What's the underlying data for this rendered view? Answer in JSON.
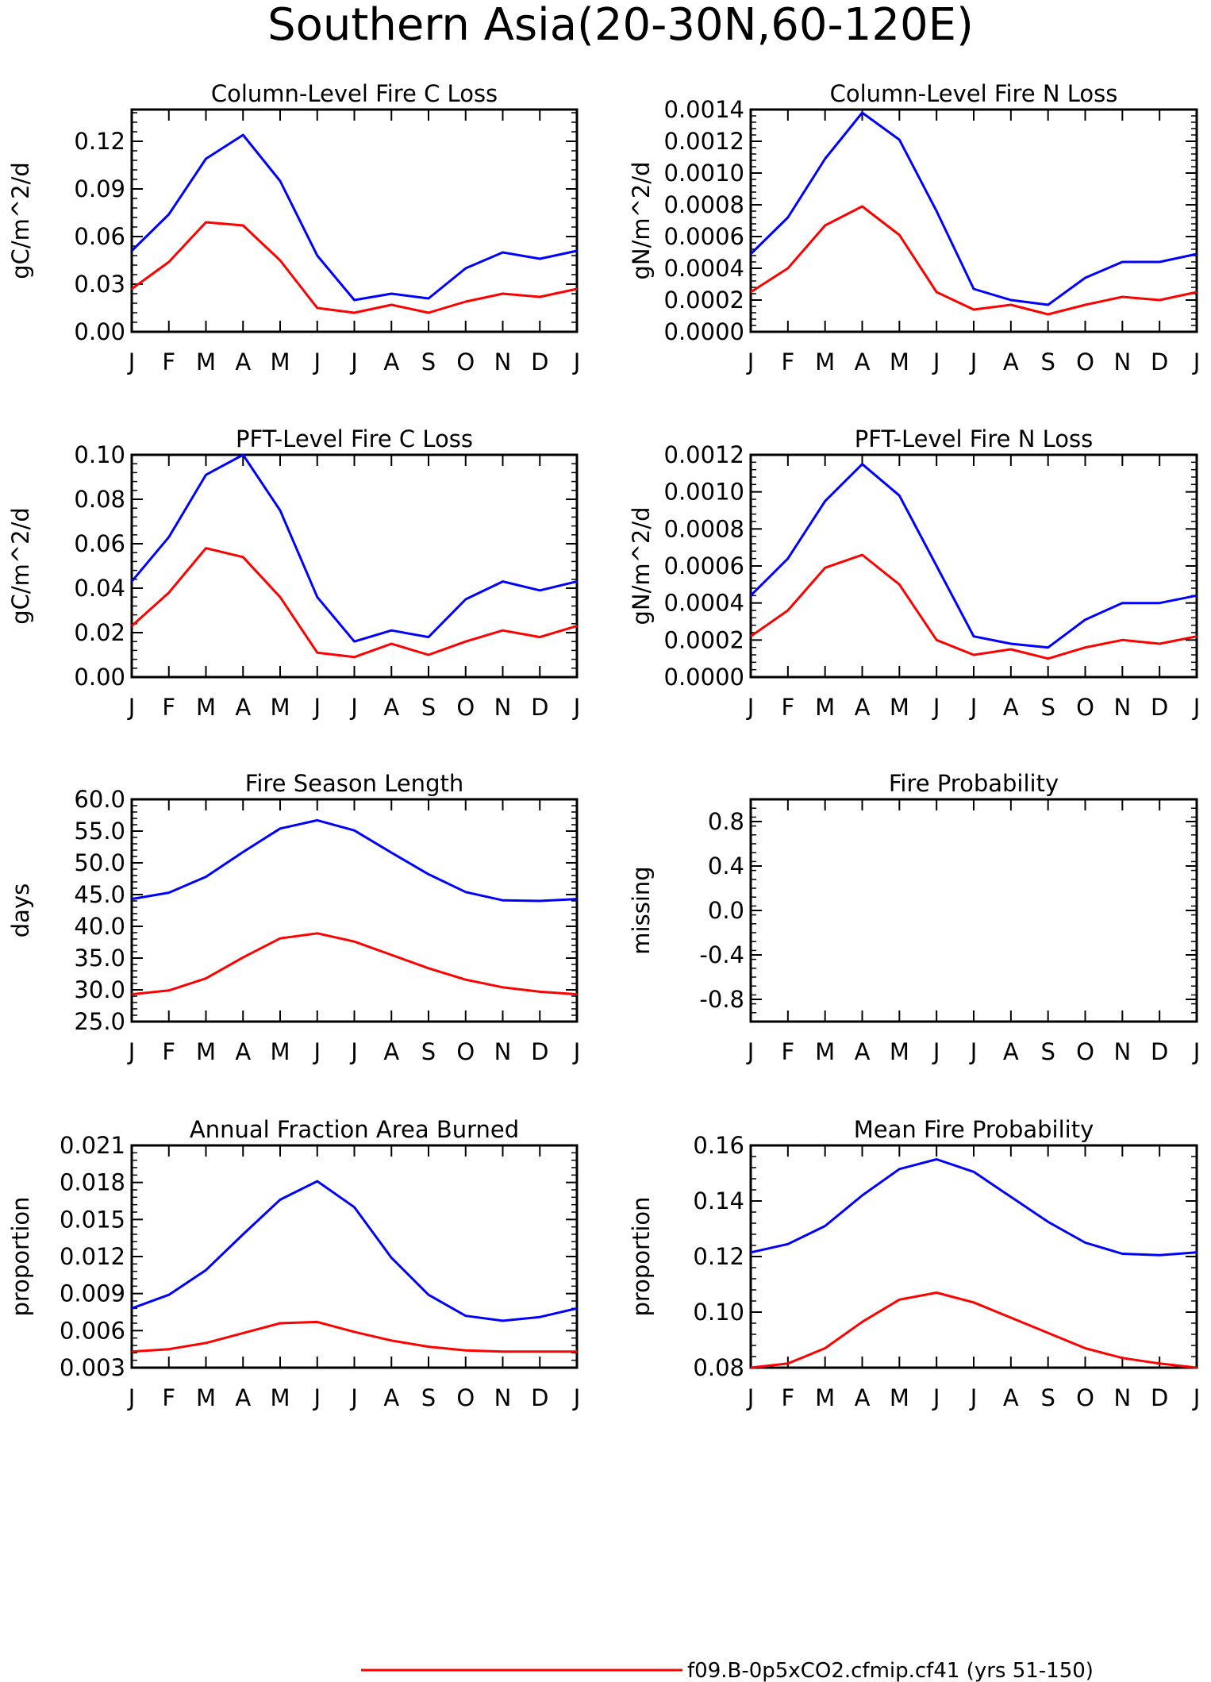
{
  "title": "Southern Asia(20-30N,60-120E)",
  "legend": {
    "entries": [
      {
        "label": "f09.B-0p5xCO2.cfmip.cf41 (yrs 51-150)",
        "color": "#ff0000"
      }
    ]
  },
  "colors": {
    "series_red": "#ff0000",
    "series_blue": "#0000ff",
    "axes": "#000000"
  },
  "chart_data": [
    {
      "type": "line",
      "title": "Column-Level Fire C Loss",
      "ylabel": "gC/m^2/d",
      "xlabel": "",
      "categories": [
        "J",
        "F",
        "M",
        "A",
        "M",
        "J",
        "J",
        "A",
        "S",
        "O",
        "N",
        "D",
        "J"
      ],
      "ylim": [
        0.0,
        0.14
      ],
      "yticks": [
        "0.00",
        "0.03",
        "0.06",
        "0.09",
        "0.12"
      ],
      "ytick_values": [
        0.0,
        0.03,
        0.06,
        0.09,
        0.12
      ],
      "series": [
        {
          "color": "#0000ff",
          "values": [
            0.051,
            0.074,
            0.109,
            0.124,
            0.095,
            0.048,
            0.02,
            0.024,
            0.021,
            0.04,
            0.05,
            0.046,
            0.051
          ]
        },
        {
          "color": "#ff0000",
          "values": [
            0.027,
            0.044,
            0.069,
            0.067,
            0.045,
            0.015,
            0.012,
            0.017,
            0.012,
            0.019,
            0.024,
            0.022,
            0.027
          ]
        }
      ]
    },
    {
      "type": "line",
      "title": "Column-Level Fire N Loss",
      "ylabel": "gN/m^2/d",
      "xlabel": "",
      "categories": [
        "J",
        "F",
        "M",
        "A",
        "M",
        "J",
        "J",
        "A",
        "S",
        "O",
        "N",
        "D",
        "J"
      ],
      "ylim": [
        0.0,
        0.0014
      ],
      "yticks": [
        "0.0000",
        "0.0002",
        "0.0004",
        "0.0006",
        "0.0008",
        "0.0010",
        "0.0012",
        "0.0014"
      ],
      "ytick_values": [
        0.0,
        0.0002,
        0.0004,
        0.0006,
        0.0008,
        0.001,
        0.0012,
        0.0014
      ],
      "series": [
        {
          "color": "#0000ff",
          "values": [
            0.00049,
            0.00072,
            0.00109,
            0.00138,
            0.00121,
            0.00076,
            0.00027,
            0.0002,
            0.00017,
            0.00034,
            0.00044,
            0.00044,
            0.00049
          ]
        },
        {
          "color": "#ff0000",
          "values": [
            0.00025,
            0.0004,
            0.00067,
            0.00079,
            0.00061,
            0.00025,
            0.00014,
            0.00017,
            0.00011,
            0.00017,
            0.00022,
            0.0002,
            0.00025
          ]
        }
      ]
    },
    {
      "type": "line",
      "title": "PFT-Level Fire C Loss",
      "ylabel": "gC/m^2/d",
      "xlabel": "",
      "categories": [
        "J",
        "F",
        "M",
        "A",
        "M",
        "J",
        "J",
        "A",
        "S",
        "O",
        "N",
        "D",
        "J"
      ],
      "ylim": [
        0.0,
        0.1
      ],
      "yticks": [
        "0.00",
        "0.02",
        "0.04",
        "0.06",
        "0.08",
        "0.10"
      ],
      "ytick_values": [
        0.0,
        0.02,
        0.04,
        0.06,
        0.08,
        0.1
      ],
      "series": [
        {
          "color": "#0000ff",
          "values": [
            0.043,
            0.063,
            0.091,
            0.1,
            0.075,
            0.036,
            0.016,
            0.021,
            0.018,
            0.035,
            0.043,
            0.039,
            0.043
          ]
        },
        {
          "color": "#ff0000",
          "values": [
            0.023,
            0.038,
            0.058,
            0.054,
            0.036,
            0.011,
            0.009,
            0.015,
            0.01,
            0.016,
            0.021,
            0.018,
            0.023
          ]
        }
      ]
    },
    {
      "type": "line",
      "title": "PFT-Level Fire N Loss",
      "ylabel": "gN/m^2/d",
      "xlabel": "",
      "categories": [
        "J",
        "F",
        "M",
        "A",
        "M",
        "J",
        "J",
        "A",
        "S",
        "O",
        "N",
        "D",
        "J"
      ],
      "ylim": [
        0.0,
        0.0012
      ],
      "yticks": [
        "0.0000",
        "0.0002",
        "0.0004",
        "0.0006",
        "0.0008",
        "0.0010",
        "0.0012"
      ],
      "ytick_values": [
        0.0,
        0.0002,
        0.0004,
        0.0006,
        0.0008,
        0.001,
        0.0012
      ],
      "series": [
        {
          "color": "#0000ff",
          "values": [
            0.00044,
            0.00064,
            0.00095,
            0.00115,
            0.00098,
            0.0006,
            0.00022,
            0.00018,
            0.00016,
            0.00031,
            0.0004,
            0.0004,
            0.00044
          ]
        },
        {
          "color": "#ff0000",
          "values": [
            0.00022,
            0.00036,
            0.00059,
            0.00066,
            0.0005,
            0.0002,
            0.00012,
            0.00015,
            0.0001,
            0.00016,
            0.0002,
            0.00018,
            0.00022
          ]
        }
      ]
    },
    {
      "type": "line",
      "title": "Fire Season Length",
      "ylabel": "days",
      "xlabel": "",
      "categories": [
        "J",
        "F",
        "M",
        "A",
        "M",
        "J",
        "J",
        "A",
        "S",
        "O",
        "N",
        "D",
        "J"
      ],
      "ylim": [
        25.0,
        60.0
      ],
      "yticks": [
        "25.0",
        "30.0",
        "35.0",
        "40.0",
        "45.0",
        "50.0",
        "55.0",
        "60.0"
      ],
      "ytick_values": [
        25,
        30,
        35,
        40,
        45,
        50,
        55,
        60
      ],
      "series": [
        {
          "color": "#0000ff",
          "values": [
            44.3,
            45.3,
            47.8,
            51.7,
            55.4,
            56.7,
            55.1,
            51.6,
            48.2,
            45.4,
            44.1,
            44.0,
            44.3
          ]
        },
        {
          "color": "#ff0000",
          "values": [
            29.3,
            29.9,
            31.8,
            35.1,
            38.1,
            38.9,
            37.6,
            35.5,
            33.4,
            31.6,
            30.4,
            29.7,
            29.3
          ]
        }
      ]
    },
    {
      "type": "line",
      "title": "Fire Probability",
      "ylabel": "missing",
      "xlabel": "",
      "categories": [
        "J",
        "F",
        "M",
        "A",
        "M",
        "J",
        "J",
        "A",
        "S",
        "O",
        "N",
        "D",
        "J"
      ],
      "ylim": [
        -1.0,
        1.0
      ],
      "yticks": [
        "-0.8",
        "-0.4",
        "0.0",
        "0.4",
        "0.8"
      ],
      "ytick_values": [
        -0.8,
        -0.4,
        0.0,
        0.4,
        0.8
      ],
      "series": []
    },
    {
      "type": "line",
      "title": "Annual Fraction Area Burned",
      "ylabel": "proportion",
      "xlabel": "",
      "categories": [
        "J",
        "F",
        "M",
        "A",
        "M",
        "J",
        "J",
        "A",
        "S",
        "O",
        "N",
        "D",
        "J"
      ],
      "ylim": [
        0.003,
        0.021
      ],
      "yticks": [
        "0.003",
        "0.006",
        "0.009",
        "0.012",
        "0.015",
        "0.018",
        "0.021"
      ],
      "ytick_values": [
        0.003,
        0.006,
        0.009,
        0.012,
        0.015,
        0.018,
        0.021
      ],
      "series": [
        {
          "color": "#0000ff",
          "values": [
            0.0078,
            0.0089,
            0.0109,
            0.0138,
            0.0166,
            0.0181,
            0.016,
            0.0119,
            0.0089,
            0.0072,
            0.0068,
            0.0071,
            0.0078
          ]
        },
        {
          "color": "#ff0000",
          "values": [
            0.0043,
            0.0045,
            0.005,
            0.0058,
            0.0066,
            0.0067,
            0.0059,
            0.0052,
            0.0047,
            0.0044,
            0.0043,
            0.0043,
            0.0043
          ]
        }
      ]
    },
    {
      "type": "line",
      "title": "Mean Fire Probability",
      "ylabel": "proportion",
      "xlabel": "",
      "categories": [
        "J",
        "F",
        "M",
        "A",
        "M",
        "J",
        "J",
        "A",
        "S",
        "O",
        "N",
        "D",
        "J"
      ],
      "ylim": [
        0.08,
        0.16
      ],
      "yticks": [
        "0.08",
        "0.10",
        "0.12",
        "0.14",
        "0.16"
      ],
      "ytick_values": [
        0.08,
        0.1,
        0.12,
        0.14,
        0.16
      ],
      "series": [
        {
          "color": "#0000ff",
          "values": [
            0.1215,
            0.1245,
            0.131,
            0.142,
            0.1515,
            0.155,
            0.1505,
            0.1415,
            0.1325,
            0.125,
            0.121,
            0.1205,
            0.1215
          ]
        },
        {
          "color": "#ff0000",
          "values": [
            0.08,
            0.0815,
            0.087,
            0.0965,
            0.1045,
            0.107,
            0.1035,
            0.098,
            0.0925,
            0.087,
            0.0835,
            0.0815,
            0.08
          ]
        }
      ]
    }
  ]
}
